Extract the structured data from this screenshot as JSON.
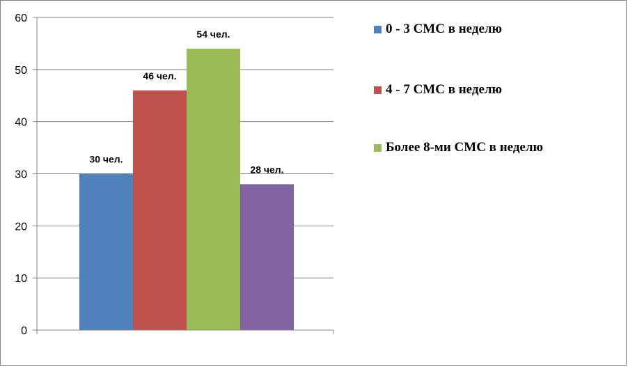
{
  "chart_data": {
    "type": "bar",
    "title": "",
    "xlabel": "",
    "ylabel": "",
    "ylim": [
      0,
      60
    ],
    "yticks": [
      "0",
      "10",
      "20",
      "30",
      "40",
      "50",
      "60"
    ],
    "grid": true,
    "legend_position": "right",
    "bars": [
      {
        "value": 30,
        "label": "30 чел.",
        "color": "#4F81BD"
      },
      {
        "value": 46,
        "label": "46 чел.",
        "color": "#C0504D"
      },
      {
        "value": 54,
        "label": "54 чел.",
        "color": "#9BBB59"
      },
      {
        "value": 28,
        "label": "28 чел.",
        "color": "#8064A2"
      }
    ],
    "legend": [
      {
        "name": "0 - 3 СМС в неделю",
        "color": "#4F81BD"
      },
      {
        "name": "4 - 7 СМС в неделю",
        "color": "#C0504D"
      },
      {
        "name": "Более 8-ми СМС в неделю",
        "color": "#9BBB59"
      }
    ]
  }
}
